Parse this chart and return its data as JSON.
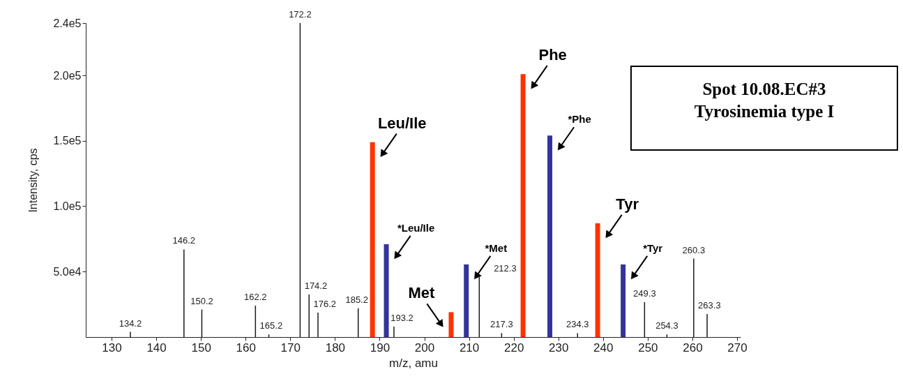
{
  "chart_data": {
    "type": "bar",
    "title": "Spot 10.08.EC#3",
    "subtitle": "Tyrosinemia type I",
    "xlabel": "m/z, amu",
    "ylabel": "Intensity, cps",
    "xlim": [
      125,
      270
    ],
    "xticks": [
      130,
      140,
      150,
      160,
      170,
      180,
      190,
      200,
      210,
      220,
      230,
      240,
      250,
      260,
      270
    ],
    "ylim": [
      0,
      240000
    ],
    "yticks": [
      {
        "value": 50000,
        "label": "5.0e4"
      },
      {
        "value": 100000,
        "label": "1.0e5"
      },
      {
        "value": 150000,
        "label": "1.5e5"
      },
      {
        "value": 200000,
        "label": "2.0e5"
      },
      {
        "value": 240000,
        "label": "2.4e5"
      }
    ],
    "grid": false,
    "series": [
      {
        "color": "#1a1a1a",
        "x": [
          134.2,
          146.2,
          150.2,
          162.2,
          165.2,
          172.2,
          174.2,
          176.2,
          185.2,
          193.2,
          212.3,
          217.3,
          234.3,
          249.3,
          254.3,
          260.3,
          263.3
        ],
        "values": [
          4000,
          67000,
          21000,
          24000,
          2000,
          240000,
          32500,
          18700,
          22000,
          8000,
          46000,
          3000,
          3000,
          26700,
          2000,
          60000,
          17600
        ]
      },
      {
        "color": "#ff3300",
        "x": [
          188.4,
          206.0,
          222.1,
          238.8
        ],
        "values": [
          149000,
          19000,
          201000,
          87000
        ]
      },
      {
        "color": "#333399",
        "x": [
          191.5,
          209.4,
          228.1,
          244.5
        ],
        "values": [
          71000,
          55500,
          154000,
          55500
        ]
      }
    ],
    "annotations": [
      {
        "text": "134.2",
        "x": 134.2,
        "y": 4000
      },
      {
        "text": "146.2",
        "x": 146.2,
        "y": 67000
      },
      {
        "text": "150.2",
        "x": 150.2,
        "y": 21000
      },
      {
        "text": "162.2",
        "x": 162.2,
        "y": 24000
      },
      {
        "text": "165.2",
        "x": 165.2,
        "y": 2000
      },
      {
        "text": "172.2",
        "x": 172.2,
        "y": 240000
      },
      {
        "text": "174.2",
        "x": 174.2,
        "y": 32500
      },
      {
        "text": "176.2",
        "x": 176.2,
        "y": 18700
      },
      {
        "text": "185.2",
        "x": 185.2,
        "y": 22000
      },
      {
        "text": "193.2",
        "x": 193.2,
        "y": 8000
      },
      {
        "text": "212.3",
        "x": 212.3,
        "y": 46000
      },
      {
        "text": "217.3",
        "x": 217.3,
        "y": 3000
      },
      {
        "text": "234.3",
        "x": 234.3,
        "y": 3000
      },
      {
        "text": "249.3",
        "x": 249.3,
        "y": 26700
      },
      {
        "text": "254.3",
        "x": 254.3,
        "y": 2000
      },
      {
        "text": "260.3",
        "x": 260.3,
        "y": 60000
      },
      {
        "text": "263.3",
        "x": 263.3,
        "y": 17600
      },
      {
        "text": "Leu/Ile",
        "x": 188.4,
        "y": 149000
      },
      {
        "text": "Met",
        "x": 206.0,
        "y": 19000
      },
      {
        "text": "Phe",
        "x": 222.1,
        "y": 201000
      },
      {
        "text": "Tyr",
        "x": 238.8,
        "y": 87000
      },
      {
        "text": "*Leu/Ile",
        "x": 191.5,
        "y": 71000
      },
      {
        "text": "*Met",
        "x": 209.4,
        "y": 55500
      },
      {
        "text": "*Phe",
        "x": 228.1,
        "y": 154000
      },
      {
        "text": "*Tyr",
        "x": 244.5,
        "y": 55500
      }
    ]
  }
}
